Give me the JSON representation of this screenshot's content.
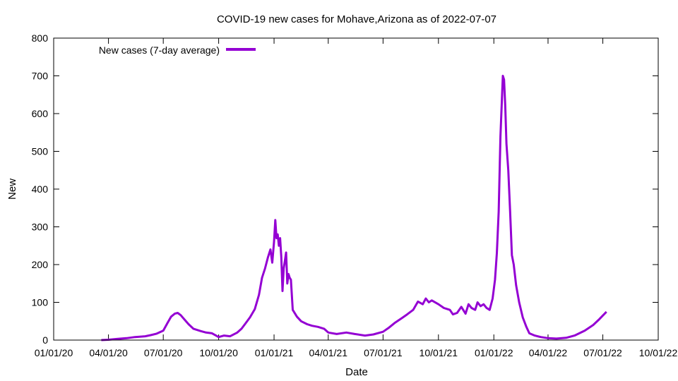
{
  "chart_data": {
    "type": "line",
    "title": "COVID-19 new cases for Mohave,Arizona as of 2022-07-07",
    "xlabel": "Date",
    "ylabel": "New",
    "xlim": [
      "2020-01-01",
      "2022-10-01"
    ],
    "ylim": [
      0,
      800
    ],
    "x_ticks": [
      "01/01/20",
      "04/01/20",
      "07/01/20",
      "10/01/20",
      "01/01/21",
      "04/01/21",
      "07/01/21",
      "10/01/21",
      "01/01/22",
      "04/01/22",
      "07/01/22",
      "10/01/22"
    ],
    "y_ticks": [
      0,
      100,
      200,
      300,
      400,
      500,
      600,
      700,
      800
    ],
    "grid": false,
    "legend_position": "top-left",
    "series": [
      {
        "name": "New cases (7-day average)",
        "color": "#9400D3",
        "points": [
          [
            "2020-03-20",
            0
          ],
          [
            "2020-04-01",
            1
          ],
          [
            "2020-04-15",
            3
          ],
          [
            "2020-05-01",
            5
          ],
          [
            "2020-05-15",
            8
          ],
          [
            "2020-06-01",
            10
          ],
          [
            "2020-06-10",
            13
          ],
          [
            "2020-06-20",
            17
          ],
          [
            "2020-07-01",
            25
          ],
          [
            "2020-07-08",
            45
          ],
          [
            "2020-07-14",
            62
          ],
          [
            "2020-07-20",
            70
          ],
          [
            "2020-07-25",
            72
          ],
          [
            "2020-07-30",
            66
          ],
          [
            "2020-08-05",
            55
          ],
          [
            "2020-08-12",
            42
          ],
          [
            "2020-08-20",
            30
          ],
          [
            "2020-09-01",
            24
          ],
          [
            "2020-09-10",
            20
          ],
          [
            "2020-09-20",
            18
          ],
          [
            "2020-10-01",
            8
          ],
          [
            "2020-10-10",
            12
          ],
          [
            "2020-10-20",
            10
          ],
          [
            "2020-11-01",
            20
          ],
          [
            "2020-11-08",
            30
          ],
          [
            "2020-11-15",
            45
          ],
          [
            "2020-11-22",
            60
          ],
          [
            "2020-11-30",
            82
          ],
          [
            "2020-12-07",
            120
          ],
          [
            "2020-12-12",
            165
          ],
          [
            "2020-12-17",
            190
          ],
          [
            "2020-12-22",
            220
          ],
          [
            "2020-12-26",
            240
          ],
          [
            "2020-12-29",
            205
          ],
          [
            "2021-01-01",
            260
          ],
          [
            "2021-01-03",
            318
          ],
          [
            "2021-01-05",
            270
          ],
          [
            "2021-01-07",
            280
          ],
          [
            "2021-01-09",
            250
          ],
          [
            "2021-01-11",
            270
          ],
          [
            "2021-01-13",
            220
          ],
          [
            "2021-01-15",
            130
          ],
          [
            "2021-01-17",
            190
          ],
          [
            "2021-01-19",
            210
          ],
          [
            "2021-01-21",
            232
          ],
          [
            "2021-01-23",
            150
          ],
          [
            "2021-01-25",
            175
          ],
          [
            "2021-01-27",
            165
          ],
          [
            "2021-01-29",
            160
          ],
          [
            "2021-02-01",
            80
          ],
          [
            "2021-02-08",
            62
          ],
          [
            "2021-02-15",
            50
          ],
          [
            "2021-02-25",
            42
          ],
          [
            "2021-03-05",
            38
          ],
          [
            "2021-03-15",
            35
          ],
          [
            "2021-03-25",
            30
          ],
          [
            "2021-04-01",
            20
          ],
          [
            "2021-04-15",
            16
          ],
          [
            "2021-05-01",
            20
          ],
          [
            "2021-05-15",
            16
          ],
          [
            "2021-06-01",
            12
          ],
          [
            "2021-06-15",
            15
          ],
          [
            "2021-07-01",
            22
          ],
          [
            "2021-07-10",
            32
          ],
          [
            "2021-07-20",
            45
          ],
          [
            "2021-08-01",
            58
          ],
          [
            "2021-08-10",
            68
          ],
          [
            "2021-08-20",
            80
          ],
          [
            "2021-08-28",
            102
          ],
          [
            "2021-09-05",
            95
          ],
          [
            "2021-09-10",
            110
          ],
          [
            "2021-09-15",
            100
          ],
          [
            "2021-09-20",
            105
          ],
          [
            "2021-10-01",
            95
          ],
          [
            "2021-10-10",
            85
          ],
          [
            "2021-10-20",
            80
          ],
          [
            "2021-10-25",
            68
          ],
          [
            "2021-11-01",
            72
          ],
          [
            "2021-11-08",
            88
          ],
          [
            "2021-11-15",
            70
          ],
          [
            "2021-11-20",
            95
          ],
          [
            "2021-11-25",
            85
          ],
          [
            "2021-12-01",
            80
          ],
          [
            "2021-12-05",
            100
          ],
          [
            "2021-12-10",
            90
          ],
          [
            "2021-12-15",
            95
          ],
          [
            "2021-12-20",
            85
          ],
          [
            "2021-12-25",
            80
          ],
          [
            "2021-12-30",
            110
          ],
          [
            "2022-01-03",
            160
          ],
          [
            "2022-01-06",
            230
          ],
          [
            "2022-01-09",
            340
          ],
          [
            "2022-01-12",
            540
          ],
          [
            "2022-01-14",
            620
          ],
          [
            "2022-01-16",
            700
          ],
          [
            "2022-01-18",
            690
          ],
          [
            "2022-01-20",
            620
          ],
          [
            "2022-01-22",
            520
          ],
          [
            "2022-01-25",
            450
          ],
          [
            "2022-01-28",
            340
          ],
          [
            "2022-01-31",
            225
          ],
          [
            "2022-02-03",
            200
          ],
          [
            "2022-02-07",
            145
          ],
          [
            "2022-02-12",
            100
          ],
          [
            "2022-02-18",
            60
          ],
          [
            "2022-02-24",
            35
          ],
          [
            "2022-03-01",
            18
          ],
          [
            "2022-03-10",
            12
          ],
          [
            "2022-03-20",
            8
          ],
          [
            "2022-04-01",
            5
          ],
          [
            "2022-04-15",
            4
          ],
          [
            "2022-05-01",
            6
          ],
          [
            "2022-05-15",
            12
          ],
          [
            "2022-06-01",
            25
          ],
          [
            "2022-06-15",
            40
          ],
          [
            "2022-06-25",
            55
          ],
          [
            "2022-07-01",
            65
          ],
          [
            "2022-07-07",
            75
          ]
        ]
      }
    ]
  }
}
